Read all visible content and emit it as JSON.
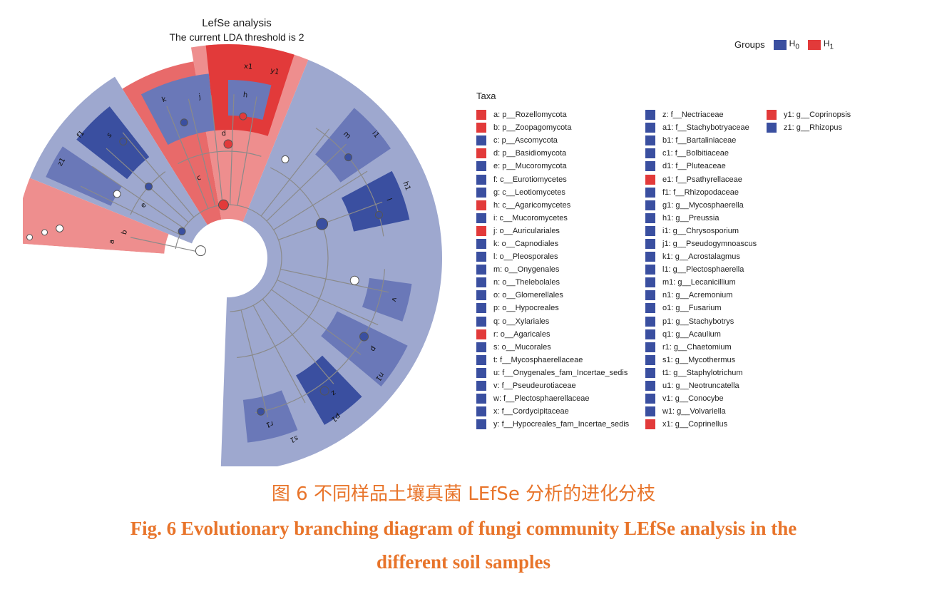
{
  "figure": {
    "title": "LefSe analysis",
    "subtitle": "The current LDA threshold is 2",
    "groups_label": "Groups",
    "groups": [
      {
        "name": "H",
        "sub": "0",
        "color": "#3a4fa0"
      },
      {
        "name": "H",
        "sub": "1",
        "color": "#e23a3a"
      }
    ],
    "taxa_title": "Taxa",
    "taxa_columns": [
      [
        {
          "key": "a",
          "text": "a: p__Rozellomycota",
          "group": "H1"
        },
        {
          "key": "b",
          "text": "b: p__Zoopagomycota",
          "group": "H1"
        },
        {
          "key": "c",
          "text": "c: p__Ascomycota",
          "group": "H0"
        },
        {
          "key": "d",
          "text": "d: p__Basidiomycota",
          "group": "H1"
        },
        {
          "key": "e",
          "text": "e: p__Mucoromycota",
          "group": "H0"
        },
        {
          "key": "f",
          "text": "f: c__Eurotiomycetes",
          "group": "H0"
        },
        {
          "key": "g",
          "text": "g: c__Leotiomycetes",
          "group": "H0"
        },
        {
          "key": "h",
          "text": "h: c__Agaricomycetes",
          "group": "H1"
        },
        {
          "key": "i",
          "text": "i: c__Mucoromycetes",
          "group": "H0"
        },
        {
          "key": "j",
          "text": "j: o__Auriculariales",
          "group": "H1"
        },
        {
          "key": "k",
          "text": "k: o__Capnodiales",
          "group": "H0"
        },
        {
          "key": "l",
          "text": "l: o__Pleosporales",
          "group": "H0"
        },
        {
          "key": "m",
          "text": "m: o__Onygenales",
          "group": "H0"
        },
        {
          "key": "n",
          "text": "n: o__Thelebolales",
          "group": "H0"
        },
        {
          "key": "o",
          "text": "o: o__Glomerellales",
          "group": "H0"
        },
        {
          "key": "p",
          "text": "p: o__Hypocreales",
          "group": "H0"
        },
        {
          "key": "q",
          "text": "q: o__Xylariales",
          "group": "H0"
        },
        {
          "key": "r",
          "text": "r: o__Agaricales",
          "group": "H1"
        },
        {
          "key": "s",
          "text": "s: o__Mucorales",
          "group": "H0"
        },
        {
          "key": "t",
          "text": "t: f__Mycosphaerellaceae",
          "group": "H0"
        },
        {
          "key": "u",
          "text": "u: f__Onygenales_fam_Incertae_sedis",
          "group": "H0"
        },
        {
          "key": "v",
          "text": "v: f__Pseudeurotiaceae",
          "group": "H0"
        },
        {
          "key": "w",
          "text": "w: f__Plectosphaerellaceae",
          "group": "H0"
        },
        {
          "key": "x",
          "text": "x: f__Cordycipitaceae",
          "group": "H0"
        },
        {
          "key": "y",
          "text": "y: f__Hypocreales_fam_Incertae_sedis",
          "group": "H0"
        }
      ],
      [
        {
          "key": "z",
          "text": "z: f__Nectriaceae",
          "group": "H0"
        },
        {
          "key": "a1",
          "text": "a1: f__Stachybotryaceae",
          "group": "H0"
        },
        {
          "key": "b1",
          "text": "b1: f__Bartaliniaceae",
          "group": "H0"
        },
        {
          "key": "c1",
          "text": "c1: f__Bolbitiaceae",
          "group": "H0"
        },
        {
          "key": "d1",
          "text": "d1: f__Pluteaceae",
          "group": "H0"
        },
        {
          "key": "e1",
          "text": "e1: f__Psathyrellaceae",
          "group": "H1"
        },
        {
          "key": "f1",
          "text": "f1: f__Rhizopodaceae",
          "group": "H0"
        },
        {
          "key": "g1",
          "text": "g1: g__Mycosphaerella",
          "group": "H0"
        },
        {
          "key": "h1",
          "text": "h1: g__Preussia",
          "group": "H0"
        },
        {
          "key": "i1",
          "text": "i1: g__Chrysosporium",
          "group": "H0"
        },
        {
          "key": "j1",
          "text": "j1: g__Pseudogymnoascus",
          "group": "H0"
        },
        {
          "key": "k1",
          "text": "k1: g__Acrostalagmus",
          "group": "H0"
        },
        {
          "key": "l1",
          "text": "l1: g__Plectosphaerella",
          "group": "H0"
        },
        {
          "key": "m1",
          "text": "m1: g__Lecanicillium",
          "group": "H0"
        },
        {
          "key": "n1",
          "text": "n1: g__Acremonium",
          "group": "H0"
        },
        {
          "key": "o1",
          "text": "o1: g__Fusarium",
          "group": "H0"
        },
        {
          "key": "p1",
          "text": "p1: g__Stachybotrys",
          "group": "H0"
        },
        {
          "key": "q1",
          "text": "q1: g__Acaulium",
          "group": "H0"
        },
        {
          "key": "r1",
          "text": "r1: g__Chaetomium",
          "group": "H0"
        },
        {
          "key": "s1",
          "text": "s1: g__Mycothermus",
          "group": "H0"
        },
        {
          "key": "t1",
          "text": "t1: g__Staphylotrichum",
          "group": "H0"
        },
        {
          "key": "u1",
          "text": "u1: g__Neotruncatella",
          "group": "H0"
        },
        {
          "key": "v1",
          "text": "v1: g__Conocybe",
          "group": "H0"
        },
        {
          "key": "w1",
          "text": "w1: g__Volvariella",
          "group": "H0"
        },
        {
          "key": "x1",
          "text": "x1: g__Coprinellus",
          "group": "H1"
        }
      ],
      [
        {
          "key": "y1",
          "text": "y1: g__Coprinopsis",
          "group": "H1"
        },
        {
          "key": "z1",
          "text": "z1: g__Rhizopus",
          "group": "H0"
        }
      ]
    ],
    "colors": {
      "H0_dark": "#3a4fa0",
      "H0_light": "#9ea8cf",
      "H0_mid": "#6a78b8",
      "H1_dark": "#e23a3a",
      "H1_light": "#ee8e8e",
      "H1_mid": "#e86a6a"
    }
  },
  "caption": {
    "cn": "图 6   不同样品土壤真菌 LEfSe 分析的进化分枝",
    "en_line1": "Fig. 6   Evolutionary branching diagram of fungi community LEfSe analysis in the",
    "en_line2": "different soil samples"
  }
}
